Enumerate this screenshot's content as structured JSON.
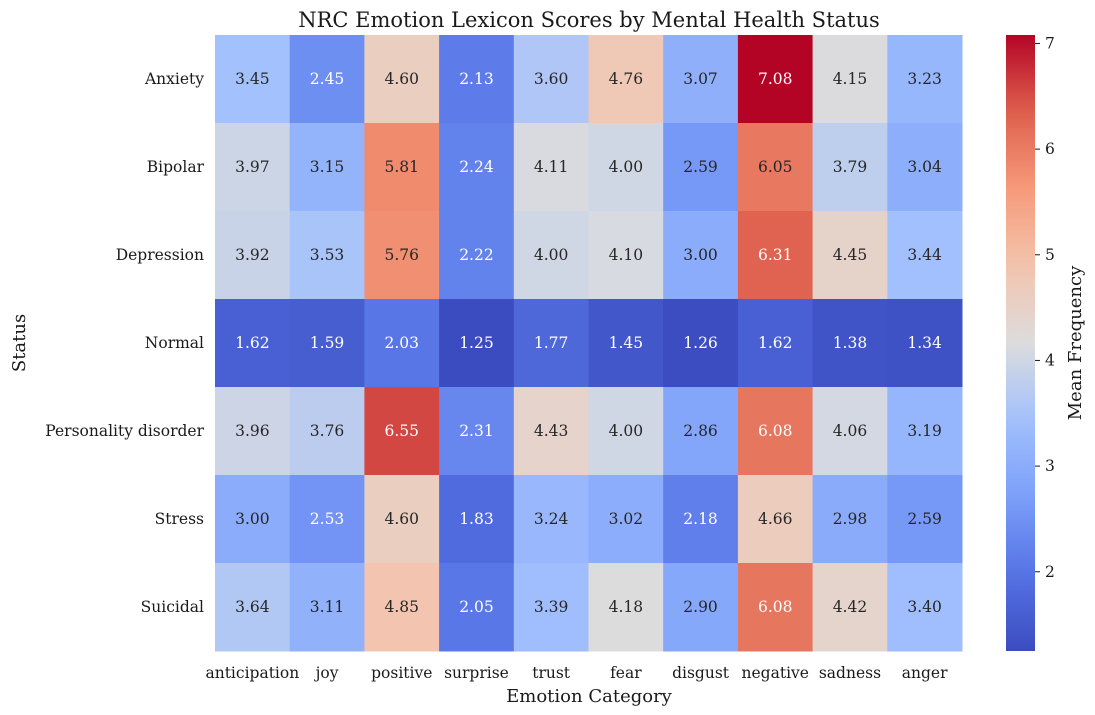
{
  "chart_data": {
    "type": "heatmap",
    "title": "NRC Emotion Lexicon Scores by Mental Health Status",
    "xlabel": "Emotion Category",
    "ylabel": "Status",
    "x_categories": [
      "anticipation",
      "joy",
      "positive",
      "surprise",
      "trust",
      "fear",
      "disgust",
      "negative",
      "sadness",
      "anger"
    ],
    "y_categories": [
      "Anxiety",
      "Bipolar",
      "Depression",
      "Normal",
      "Personality disorder",
      "Stress",
      "Suicidal"
    ],
    "values": [
      [
        3.45,
        2.45,
        4.6,
        2.13,
        3.6,
        4.76,
        3.07,
        7.08,
        4.15,
        3.23
      ],
      [
        3.97,
        3.15,
        5.81,
        2.24,
        4.11,
        4.0,
        2.59,
        6.05,
        3.79,
        3.04
      ],
      [
        3.92,
        3.53,
        5.76,
        2.22,
        4.0,
        4.1,
        3.0,
        6.31,
        4.45,
        3.44
      ],
      [
        1.62,
        1.59,
        2.03,
        1.25,
        1.77,
        1.45,
        1.26,
        1.62,
        1.38,
        1.34
      ],
      [
        3.96,
        3.76,
        6.55,
        2.31,
        4.43,
        4.0,
        2.86,
        6.08,
        4.06,
        3.19
      ],
      [
        3.0,
        2.53,
        4.6,
        1.83,
        3.24,
        3.02,
        2.18,
        4.66,
        2.98,
        2.59
      ],
      [
        3.64,
        3.11,
        4.85,
        2.05,
        3.39,
        4.18,
        2.9,
        6.08,
        4.42,
        3.4
      ]
    ],
    "colormap": "coolwarm",
    "colorbar": {
      "label": "Mean Frequency",
      "range": [
        1.25,
        7.08
      ],
      "ticks": [
        2,
        3,
        4,
        5,
        6,
        7
      ]
    }
  }
}
